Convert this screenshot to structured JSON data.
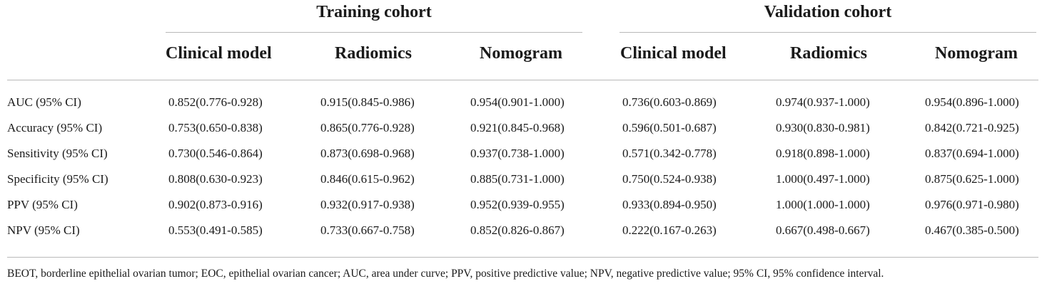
{
  "table": {
    "group_headers": [
      "Training cohort",
      "Validation cohort"
    ],
    "column_headers": [
      "Clinical model",
      "Radiomics",
      "Nomogram",
      "Clinical model",
      "Radiomics",
      "Nomogram"
    ],
    "rows": [
      {
        "label": "AUC (95% CI)",
        "cells": [
          "0.852(0.776-0.928)",
          "0.915(0.845-0.986)",
          "0.954(0.901-1.000)",
          "0.736(0.603-0.869)",
          "0.974(0.937-1.000)",
          "0.954(0.896-1.000)"
        ]
      },
      {
        "label": "Accuracy (95% CI)",
        "cells": [
          "0.753(0.650-0.838)",
          "0.865(0.776-0.928)",
          "0.921(0.845-0.968)",
          "0.596(0.501-0.687)",
          "0.930(0.830-0.981)",
          "0.842(0.721-0.925)"
        ]
      },
      {
        "label": "Sensitivity (95% CI)",
        "cells": [
          "0.730(0.546-0.864)",
          "0.873(0.698-0.968)",
          "0.937(0.738-1.000)",
          "0.571(0.342-0.778)",
          "0.918(0.898-1.000)",
          "0.837(0.694-1.000)"
        ]
      },
      {
        "label": "Specificity (95% CI)",
        "cells": [
          "0.808(0.630-0.923)",
          "0.846(0.615-0.962)",
          "0.885(0.731-1.000)",
          "0.750(0.524-0.938)",
          "1.000(0.497-1.000)",
          "0.875(0.625-1.000)"
        ]
      },
      {
        "label": "PPV (95% CI)",
        "cells": [
          "0.902(0.873-0.916)",
          "0.932(0.917-0.938)",
          "0.952(0.939-0.955)",
          "0.933(0.894-0.950)",
          "1.000(1.000-1.000)",
          "0.976(0.971-0.980)"
        ]
      },
      {
        "label": "NPV (95% CI)",
        "cells": [
          "0.553(0.491-0.585)",
          "0.733(0.667-0.758)",
          "0.852(0.826-0.867)",
          "0.222(0.167-0.263)",
          "0.667(0.498-0.667)",
          "0.467(0.385-0.500)"
        ]
      }
    ],
    "footnote": "BEOT, borderline epithelial ovarian tumor; EOC, epithelial ovarian cancer; AUC, area under curve; PPV, positive predictive value; NPV, negative predictive value; 95% CI, 95% confidence interval."
  }
}
